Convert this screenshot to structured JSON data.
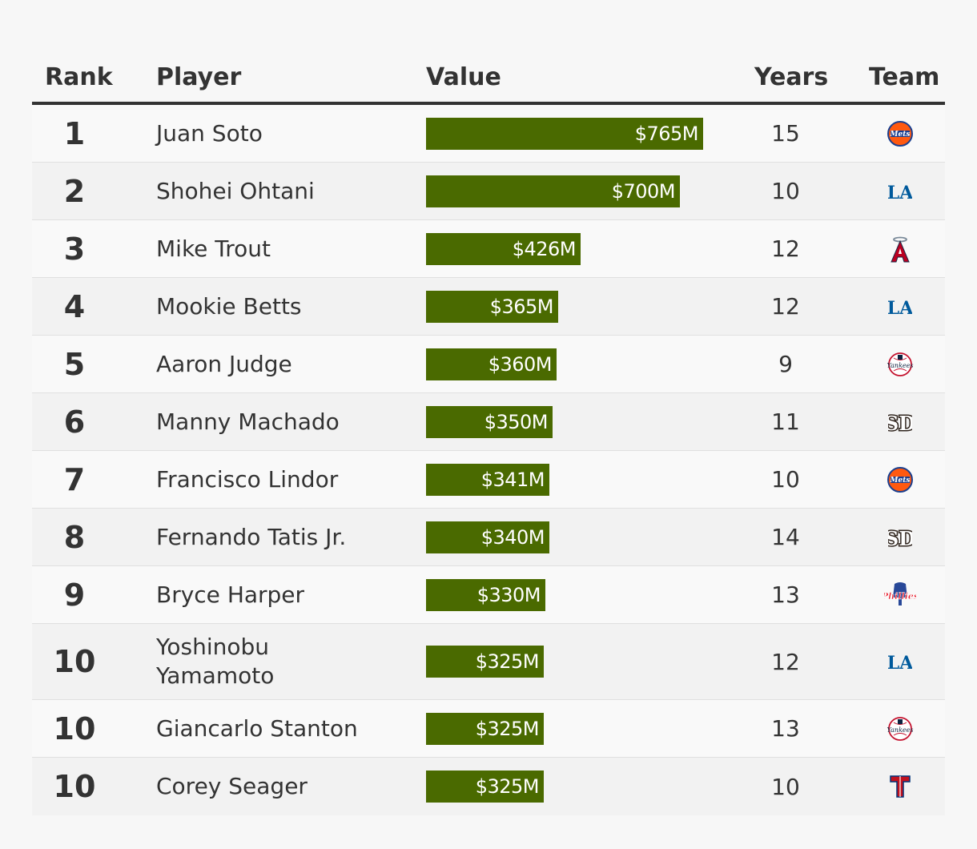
{
  "headers": {
    "rank": "Rank",
    "player": "Player",
    "value": "Value",
    "years": "Years",
    "team": "Team"
  },
  "colors": {
    "bar": "#4a6a00",
    "text": "#333333"
  },
  "chart_data": {
    "type": "table",
    "value_unit": "$M",
    "value_max": 765,
    "rows": [
      {
        "rank": "1",
        "player_lines": [
          "Juan Soto"
        ],
        "value": 765,
        "label": "$765M",
        "years": "15",
        "team_icon": "mets-logo-icon"
      },
      {
        "rank": "2",
        "player_lines": [
          "Shohei Ohtani"
        ],
        "value": 700,
        "label": "$700M",
        "years": "10",
        "team_icon": "dodgers-logo-icon"
      },
      {
        "rank": "3",
        "player_lines": [
          "Mike Trout"
        ],
        "value": 426,
        "label": "$426M",
        "years": "12",
        "team_icon": "angels-logo-icon"
      },
      {
        "rank": "4",
        "player_lines": [
          "Mookie Betts"
        ],
        "value": 365,
        "label": "$365M",
        "years": "12",
        "team_icon": "dodgers-logo-icon"
      },
      {
        "rank": "5",
        "player_lines": [
          "Aaron Judge"
        ],
        "value": 360,
        "label": "$360M",
        "years": "9",
        "team_icon": "yankees-logo-icon"
      },
      {
        "rank": "6",
        "player_lines": [
          "Manny Machado"
        ],
        "value": 350,
        "label": "$350M",
        "years": "11",
        "team_icon": "padres-logo-icon"
      },
      {
        "rank": "7",
        "player_lines": [
          "Francisco Lindor"
        ],
        "value": 341,
        "label": "$341M",
        "years": "10",
        "team_icon": "mets-logo-icon"
      },
      {
        "rank": "8",
        "player_lines": [
          "Fernando Tatis Jr."
        ],
        "value": 340,
        "label": "$340M",
        "years": "14",
        "team_icon": "padres-logo-icon"
      },
      {
        "rank": "9",
        "player_lines": [
          "Bryce Harper"
        ],
        "value": 330,
        "label": "$330M",
        "years": "13",
        "team_icon": "phillies-logo-icon"
      },
      {
        "rank": "10",
        "player_lines": [
          "Yoshinobu",
          "Yamamoto"
        ],
        "value": 325,
        "label": "$325M",
        "years": "12",
        "team_icon": "dodgers-logo-icon"
      },
      {
        "rank": "10",
        "player_lines": [
          "Giancarlo Stanton"
        ],
        "value": 325,
        "label": "$325M",
        "years": "13",
        "team_icon": "yankees-logo-icon"
      },
      {
        "rank": "10",
        "player_lines": [
          "Corey Seager"
        ],
        "value": 325,
        "label": "$325M",
        "years": "10",
        "team_icon": "rangers-logo-icon"
      }
    ]
  }
}
